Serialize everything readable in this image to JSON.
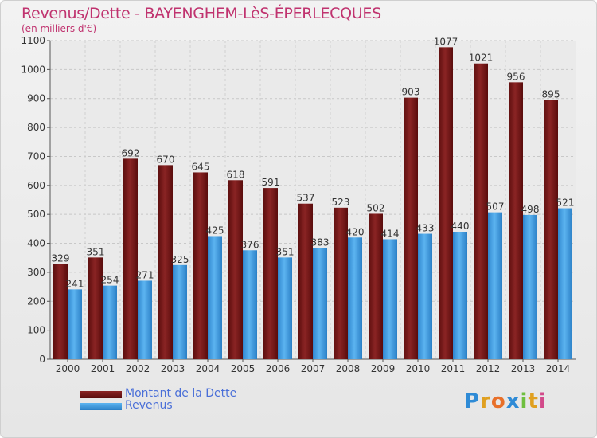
{
  "header": {
    "title": "Revenus/Dette - BAYENGHEM-LèS-ÉPERLECQUES",
    "subtitle": "(en milliers d'€)"
  },
  "legend": {
    "items": [
      {
        "label": "Montant de la Dette",
        "color": "#7a1a1a"
      },
      {
        "label": "Revenus",
        "color": "#3d9ae0"
      }
    ]
  },
  "logo": {
    "letters": [
      {
        "char": "P",
        "color": "#2f8bd6"
      },
      {
        "char": "r",
        "color": "#e0a020"
      },
      {
        "char": "o",
        "color": "#e8702a"
      },
      {
        "char": "x",
        "color": "#2f8bd6"
      },
      {
        "char": "i",
        "color": "#6fbf3f"
      },
      {
        "char": "t",
        "color": "#e0a020"
      },
      {
        "char": "i",
        "color": "#d24a8a"
      }
    ]
  },
  "chart_data": {
    "type": "bar",
    "title": "Revenus/Dette - BAYENGHEM-LèS-ÉPERLECQUES",
    "subtitle": "(en milliers d'€)",
    "categories": [
      "2000",
      "2001",
      "2002",
      "2003",
      "2004",
      "2005",
      "2006",
      "2007",
      "2008",
      "2009",
      "2010",
      "2011",
      "2012",
      "2013",
      "2014"
    ],
    "series": [
      {
        "name": "Montant de la Dette",
        "color": "#7a1a1a",
        "values": [
          329,
          351,
          692,
          670,
          645,
          618,
          591,
          537,
          523,
          502,
          903,
          1077,
          1021,
          956,
          895
        ]
      },
      {
        "name": "Revenus",
        "color": "#3d9ae0",
        "values": [
          241,
          254,
          271,
          325,
          425,
          376,
          351,
          383,
          420,
          414,
          433,
          440,
          507,
          498,
          521
        ]
      }
    ],
    "ylim": [
      0,
      1100
    ],
    "yticks": [
      0,
      100,
      200,
      300,
      400,
      500,
      600,
      700,
      800,
      900,
      1000,
      1100
    ],
    "grid": true,
    "legend_position": "bottom-left"
  }
}
